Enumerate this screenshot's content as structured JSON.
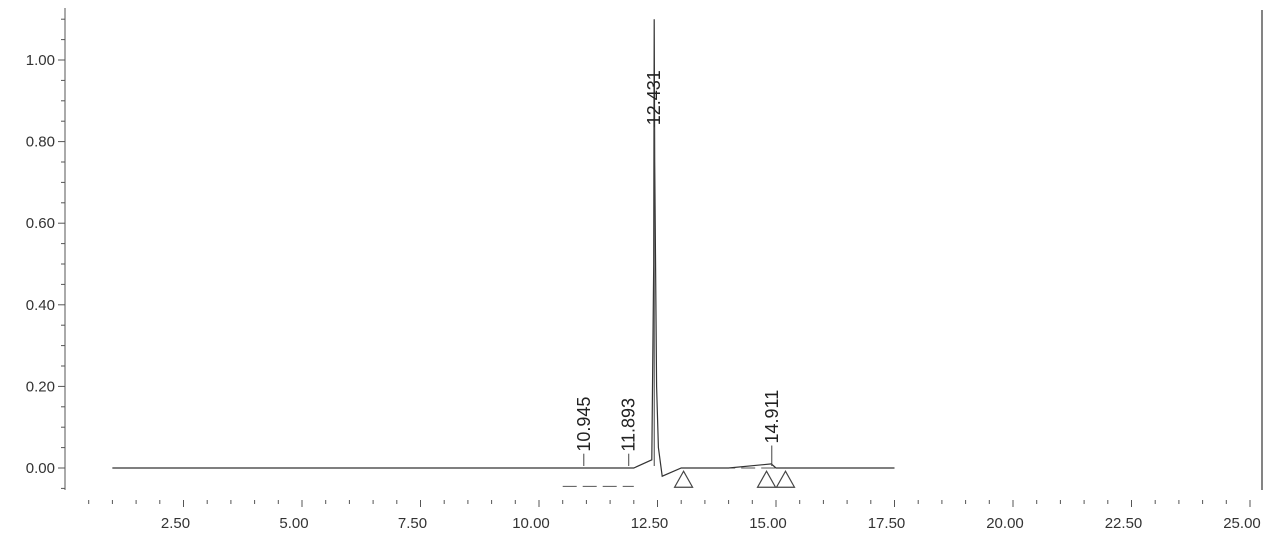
{
  "chart_data": {
    "type": "line",
    "title": "",
    "xlabel": "",
    "ylabel": "",
    "xlim": [
      0,
      25
    ],
    "ylim": [
      -0.05,
      1.1
    ],
    "x_ticks": [
      {
        "value": 2.5,
        "label": "2.50"
      },
      {
        "value": 5.0,
        "label": "5.00"
      },
      {
        "value": 7.5,
        "label": "7.50"
      },
      {
        "value": 10.0,
        "label": "10.00"
      },
      {
        "value": 12.5,
        "label": "12.50"
      },
      {
        "value": 15.0,
        "label": "15.00"
      },
      {
        "value": 17.5,
        "label": "17.50"
      },
      {
        "value": 20.0,
        "label": "20.00"
      },
      {
        "value": 22.5,
        "label": "22.50"
      },
      {
        "value": 25.0,
        "label": "25.00"
      }
    ],
    "y_ticks": [
      {
        "value": 0.0,
        "label": "0.00"
      },
      {
        "value": 0.2,
        "label": "0.20"
      },
      {
        "value": 0.4,
        "label": "0.40"
      },
      {
        "value": 0.6,
        "label": "0.60"
      },
      {
        "value": 0.8,
        "label": "0.80"
      },
      {
        "value": 1.0,
        "label": "1.00"
      }
    ],
    "grid": false,
    "series": [
      {
        "x": [
          1.0,
          10.0,
          11.0,
          12.0,
          12.38,
          12.42,
          12.431,
          12.44,
          12.48,
          12.52,
          12.6,
          13.0,
          14.0,
          14.9,
          15.0,
          17.5
        ],
        "y": [
          0.0,
          0.0,
          0.0,
          0.0,
          0.02,
          0.5,
          1.1,
          0.75,
          0.2,
          0.05,
          -0.02,
          0.0,
          0.0,
          0.01,
          0.0,
          0.0
        ]
      }
    ],
    "peaks": [
      {
        "rt": 10.945,
        "label": "10.945",
        "label_y": 0.04
      },
      {
        "rt": 11.893,
        "label": "11.893",
        "label_y": 0.04
      },
      {
        "rt": 12.431,
        "label": "12.431",
        "label_y": 0.84
      },
      {
        "rt": 14.911,
        "label": "14.911",
        "label_y": 0.06
      }
    ],
    "integration_markers": [
      13.05,
      14.8,
      15.2
    ]
  }
}
